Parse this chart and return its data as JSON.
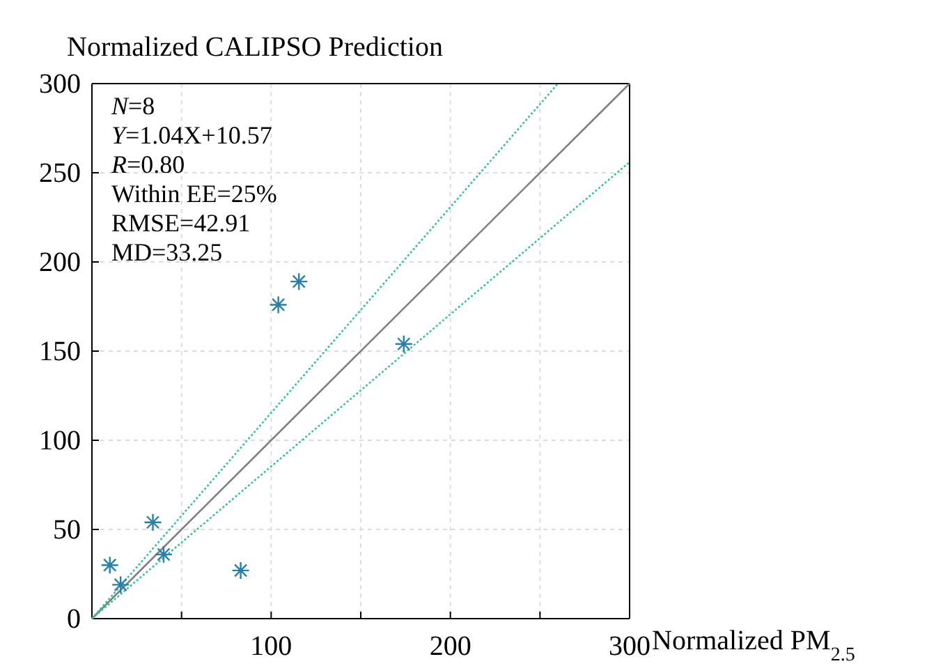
{
  "chart_data": {
    "type": "scatter",
    "ylabel": "Normalized CALIPSO Prediction",
    "xlabel": "Normalized PM$_{2.5}$",
    "xlim": [
      0,
      300
    ],
    "ylim": [
      0,
      300
    ],
    "xticks": [
      {
        "value": 50,
        "label": null
      },
      100,
      {
        "value": 150,
        "label": null
      },
      200,
      {
        "value": 250,
        "label": null
      },
      300
    ],
    "yticks": [
      0,
      50,
      100,
      150,
      200,
      250,
      300
    ],
    "grid": true,
    "marker": "cross",
    "series": [
      {
        "type": "line",
        "color": "#808080",
        "line_style": "solid",
        "marker": "none",
        "x": [
          0,
          300
        ],
        "values": [
          0,
          300
        ]
      },
      {
        "type": "line",
        "color": "#3cbf9c",
        "line_style": "dotted",
        "marker": "none",
        "x": [
          0,
          260
        ],
        "values": [
          0,
          300
        ]
      },
      {
        "type": "line",
        "color": "#3cbf9c",
        "line_style": "dotted",
        "marker": "none",
        "x": [
          0,
          300
        ],
        "values": [
          0,
          256
        ]
      },
      {
        "color": "#2a7fa8",
        "x": [
          10,
          16,
          34,
          40,
          83,
          104,
          115.5,
          174
        ],
        "values": [
          30,
          19,
          54,
          36,
          27,
          176,
          189,
          154
        ]
      }
    ],
    "annotations": [
      "N=8",
      "Y=1.04X+10.57",
      "R=0.80",
      "Within EE=25%",
      "RMSE=42.91",
      "MD=33.25"
    ]
  }
}
